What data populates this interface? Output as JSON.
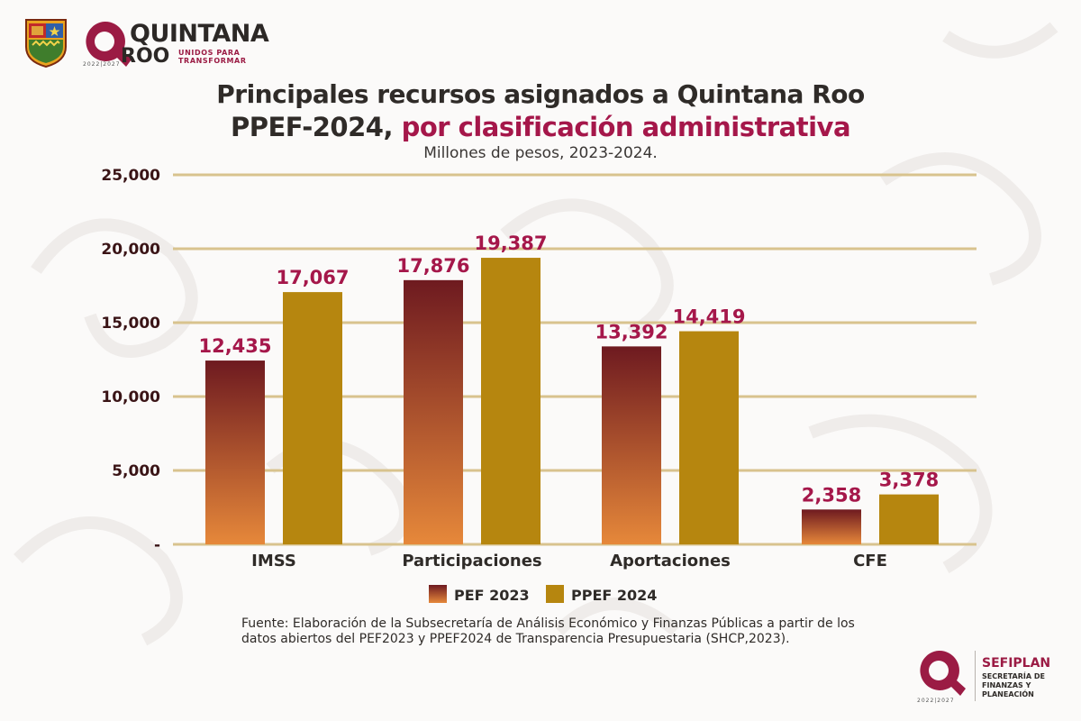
{
  "header": {
    "logo_line1": "QUINTANA",
    "logo_line2": "ROO",
    "logo_tagline": "UNIDOS PARA TRANSFORMAR",
    "logo_years": "2022|2027"
  },
  "chart_data": {
    "type": "bar",
    "title_line1": "Principales recursos asignados a Quintana Roo",
    "title_line2_plain": "PPEF-2024, ",
    "title_line2_highlight": "por clasificación administrativa",
    "subtitle": "Millones de pesos, 2023-2024.",
    "categories": [
      "IMSS",
      "Participaciones",
      "Aportaciones",
      "CFE"
    ],
    "series": [
      {
        "name": "PEF 2023",
        "values": [
          12435,
          17876,
          13392,
          2358
        ],
        "labels": [
          "12,435",
          "17,876",
          "13,392",
          "2,358"
        ]
      },
      {
        "name": "PPEF 2024",
        "values": [
          17067,
          19387,
          14419,
          3378
        ],
        "labels": [
          "17,067",
          "19,387",
          "14,419",
          "3,378"
        ]
      }
    ],
    "ylim": [
      0,
      25000
    ],
    "yticks": [
      0,
      5000,
      10000,
      15000,
      20000,
      25000
    ],
    "ytick_labels": [
      "-",
      "5,000",
      "10,000",
      "15,000",
      "20,000",
      "25,000"
    ],
    "grid": true,
    "legend_position": "bottom",
    "colors": {
      "pef2023_top": "#6e1a20",
      "pef2023_bottom": "#e6883a",
      "ppef2024": "#b6860f",
      "data_label": "#a5174a",
      "gridline": "#d8c38e",
      "axis_text": "#3a1416"
    }
  },
  "footer": {
    "source_text": "Fuente: Elaboración de la Subsecretaría de Análisis Económico y Finanzas Públicas a partir de los datos abiertos del PEF2023 y PPEF2024 de Transparencia Presupuestaria (SHCP,2023).",
    "agency_name": "SEFIPLAN",
    "agency_sub": "SECRETARÍA DE FINANZAS Y PLANEACIÓN",
    "footer_years": "2022|2027"
  }
}
